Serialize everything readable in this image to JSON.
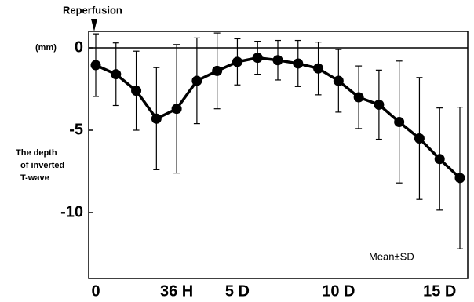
{
  "chart_data": {
    "type": "line",
    "annotation": "Reperfusion",
    "unit_label": "(mm)",
    "ylabel": [
      "The depth",
      "of inverted",
      "T-wave"
    ],
    "legend_text": "Mean±SD",
    "categories": [
      "0",
      null,
      null,
      null,
      "36 H",
      null,
      null,
      "5 D",
      null,
      null,
      null,
      null,
      "10 D",
      null,
      null,
      null,
      null,
      "15 D",
      null
    ],
    "series": [
      {
        "name": "Mean±SD",
        "color": "#000000",
        "values": [
          -1.05,
          -1.6,
          -2.6,
          -4.3,
          -3.7,
          -2.0,
          -1.4,
          -0.85,
          -0.6,
          -0.75,
          -0.95,
          -1.25,
          -2.0,
          -3.0,
          -3.45,
          -4.5,
          -5.5,
          -6.75,
          -7.9
        ],
        "error": [
          1.9,
          1.9,
          2.4,
          3.1,
          3.9,
          2.6,
          2.3,
          1.4,
          1.0,
          1.2,
          1.4,
          1.6,
          1.9,
          1.9,
          2.1,
          3.7,
          3.7,
          3.1,
          4.3
        ]
      }
    ],
    "ylim": [
      -14,
      1
    ],
    "yticks": [
      0,
      -5,
      -10
    ]
  }
}
